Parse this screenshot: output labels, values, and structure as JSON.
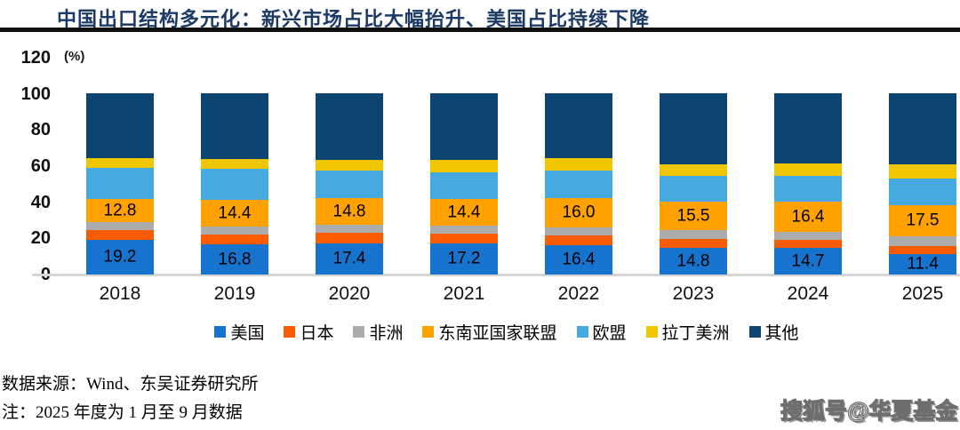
{
  "header": {
    "title": "中国出口结构多元化：新兴市场占比大幅抬升、美国占比持续下降"
  },
  "chart_data": {
    "type": "bar",
    "subtype": "stacked-100-percent",
    "title": "中国出口结构多元化：新兴市场占比大幅抬升、美国占比持续下降",
    "unit_label": "(%)",
    "xlabel": "",
    "ylabel": "(%)",
    "ylim": [
      0,
      120
    ],
    "y_ticks": [
      0,
      20,
      40,
      60,
      80,
      100,
      120
    ],
    "grid": false,
    "legend_position": "bottom",
    "categories": [
      "2018",
      "2019",
      "2020",
      "2021",
      "2022",
      "2023",
      "2024",
      "2025"
    ],
    "series": [
      {
        "name": "美国",
        "color": "#1673CE",
        "labeled": true,
        "values": [
          19.2,
          16.8,
          17.4,
          17.2,
          16.4,
          14.8,
          14.7,
          11.4
        ]
      },
      {
        "name": "日本",
        "color": "#FB5C00",
        "labeled": false,
        "values": [
          5.4,
          5.3,
          5.5,
          5.2,
          5.0,
          4.8,
          4.5,
          4.3
        ]
      },
      {
        "name": "非洲",
        "color": "#ACACAC",
        "labeled": false,
        "values": [
          4.4,
          4.5,
          4.6,
          4.8,
          4.8,
          4.9,
          4.5,
          5.3
        ]
      },
      {
        "name": "东南亚国家联盟",
        "color": "#FFA200",
        "labeled": true,
        "values": [
          12.8,
          14.4,
          14.8,
          14.4,
          16.0,
          15.5,
          16.4,
          17.5
        ]
      },
      {
        "name": "欧盟",
        "color": "#46A9E0",
        "labeled": false,
        "values": [
          16.8,
          17.2,
          15.0,
          14.9,
          15.2,
          14.5,
          14.2,
          14.6
        ]
      },
      {
        "name": "拉丁美洲",
        "color": "#EFC600",
        "labeled": false,
        "values": [
          5.4,
          5.4,
          6.2,
          6.8,
          7.0,
          6.4,
          7.0,
          7.6
        ]
      },
      {
        "name": "其他",
        "color": "#0D4471",
        "labeled": false,
        "values": [
          36.0,
          36.4,
          36.5,
          36.7,
          35.6,
          39.1,
          38.7,
          39.3
        ]
      }
    ]
  },
  "footer": {
    "source": "数据来源：Wind、东吴证券研究所",
    "note": "注：2025 年度为 1 月至 9 月数据"
  },
  "watermark": "搜狐号@华夏基金"
}
